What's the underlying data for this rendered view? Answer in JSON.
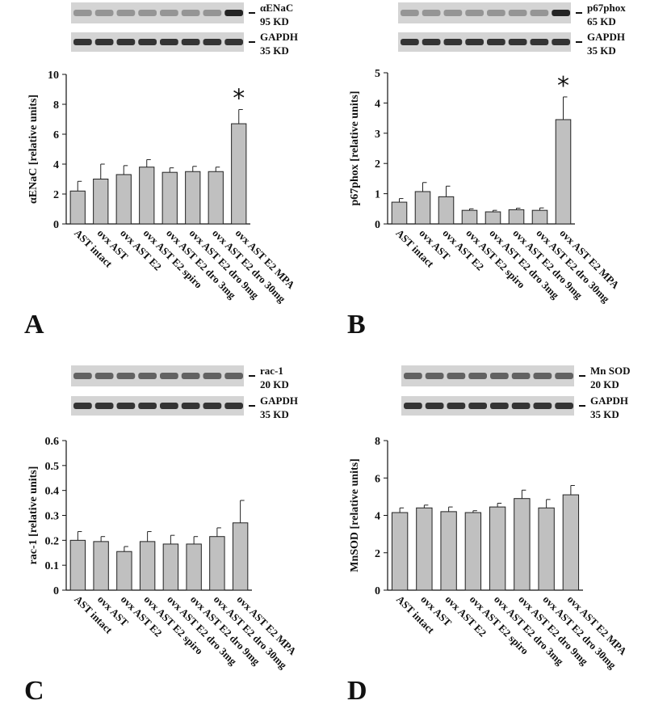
{
  "chart_data": [
    {
      "type": "bar",
      "panel": "A",
      "ylabel": "αENaC  [relative units]",
      "annotation": "*",
      "blot": {
        "target": "αENaC",
        "target_size": "95 KD",
        "control": "GAPDH",
        "control_size": "35 KD"
      },
      "categories": [
        "AST intact",
        "ovx AST",
        "ovx AST E2",
        "ovx AST E2 spiro",
        "ovx AST E2 dro 3mg",
        "ovx AST E2 dro 9mg",
        "ovx AST E2 dro 30mg",
        "ovx AST E2 MPA"
      ],
      "values": [
        2.2,
        3.0,
        3.3,
        3.8,
        3.45,
        3.5,
        3.5,
        6.7
      ],
      "errors": [
        0.65,
        1.0,
        0.6,
        0.5,
        0.3,
        0.35,
        0.3,
        0.95
      ],
      "color": "#c0c0c0",
      "ylim": [
        0,
        10
      ],
      "yticks": [
        0,
        2,
        4,
        6,
        8,
        10
      ]
    },
    {
      "type": "bar",
      "panel": "B",
      "ylabel": "p67phox [relative units]",
      "annotation": "*",
      "blot": {
        "target": "p67phox",
        "target_size": "65 KD",
        "control": "GAPDH",
        "control_size": "35 KD"
      },
      "categories": [
        "AST intact",
        "ovx AST",
        "ovx AST E2",
        "ovx AST E2 spiro",
        "ovx AST E2 dro 3mg",
        "ovx AST E2 dro 9mg",
        "ovx AST E2 dro 30mg",
        "ovx AST E2 MPA"
      ],
      "values": [
        0.72,
        1.07,
        0.9,
        0.45,
        0.4,
        0.47,
        0.45,
        3.45
      ],
      "errors": [
        0.12,
        0.3,
        0.35,
        0.05,
        0.05,
        0.05,
        0.08,
        0.75
      ],
      "color": "#c0c0c0",
      "ylim": [
        0,
        5
      ],
      "yticks": [
        0,
        1,
        2,
        3,
        4,
        5
      ]
    },
    {
      "type": "bar",
      "panel": "C",
      "ylabel": "rac-1 [relative units]",
      "blot": {
        "target": "rac-1",
        "target_size": "20 KD",
        "control": "GAPDH",
        "control_size": "35 KD"
      },
      "categories": [
        "AST intact",
        "ovx AST",
        "ovx AST E2",
        "ovx AST E2 spiro",
        "ovx AST E2 dro 3mg",
        "ovx AST E2 dro 9mg",
        "ovx AST E2 dro 30mg",
        "ovx AST E2 MPA"
      ],
      "values": [
        0.2,
        0.195,
        0.155,
        0.195,
        0.185,
        0.185,
        0.215,
        0.27
      ],
      "errors": [
        0.035,
        0.02,
        0.02,
        0.04,
        0.035,
        0.03,
        0.035,
        0.09
      ],
      "color": "#c0c0c0",
      "ylim": [
        0,
        0.6
      ],
      "yticks": [
        0,
        0.1,
        0.2,
        0.3,
        0.4,
        0.5,
        0.6
      ]
    },
    {
      "type": "bar",
      "panel": "D",
      "ylabel": "MnSOD [relative units]",
      "blot": {
        "target": "Mn SOD",
        "target_size": "20 KD",
        "control": "GAPDH",
        "control_size": "35 KD"
      },
      "categories": [
        "AST intact",
        "ovx AST",
        "ovx AST E2",
        "ovx AST E2 spiro",
        "ovx AST E2 dro 3mg",
        "ovx AST E2 dro 9mg",
        "ovx AST E2 dro 30mg",
        "ovx AST E2 MPA"
      ],
      "values": [
        4.15,
        4.4,
        4.2,
        4.15,
        4.45,
        4.9,
        4.4,
        5.1
      ],
      "errors": [
        0.25,
        0.15,
        0.25,
        0.1,
        0.2,
        0.45,
        0.45,
        0.5
      ],
      "color": "#c0c0c0",
      "ylim": [
        0,
        8
      ],
      "yticks": [
        0,
        2,
        4,
        6,
        8
      ]
    }
  ]
}
